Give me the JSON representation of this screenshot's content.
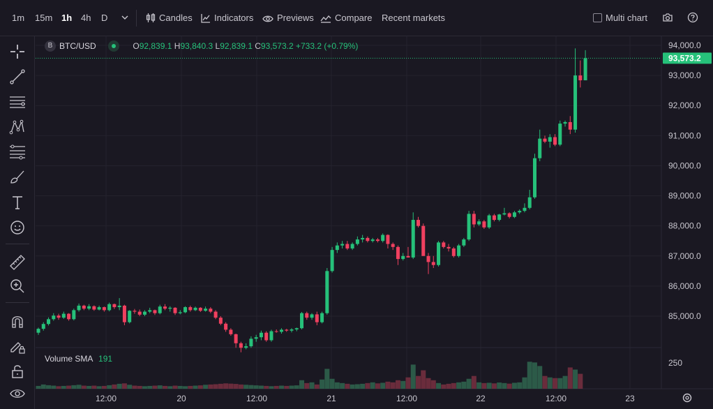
{
  "toolbar": {
    "intervals": [
      "1m",
      "15m",
      "1h",
      "4h",
      "D"
    ],
    "active_interval": "1h",
    "candles_label": "Candles",
    "indicators_label": "Indicators",
    "previews_label": "Previews",
    "compare_label": "Compare",
    "recent_markets_label": "Recent markets",
    "multi_chart_label": "Multi chart",
    "multi_chart_checked": false
  },
  "sidebar": {
    "tools": [
      "crosshair-icon",
      "trend-line-icon",
      "horizontal-lines-icon",
      "pattern-icon",
      "fib-icon",
      "brush-icon",
      "text-icon",
      "emoji-icon",
      "ruler-icon",
      "zoom-in-icon",
      "magnet-icon",
      "pencil-lock-icon",
      "lock-icon",
      "eye-icon"
    ]
  },
  "legend": {
    "symbol": "BTC/USD",
    "symbol_badge": "B",
    "o_label": "O",
    "o_value": "92,839.1",
    "h_label": "H",
    "h_value": "93,840.3",
    "l_label": "L",
    "l_value": "92,839.1",
    "c_label": "C",
    "c_value": "93,573.2",
    "change": "+733.2",
    "change_pct": "(+0.79%)"
  },
  "volume": {
    "label": "Volume SMA",
    "value": "191",
    "axis_label": "250"
  },
  "colors": {
    "up": "#26c17a",
    "down": "#f0405f",
    "vol_up": "#2c5a48",
    "vol_down": "#6a2c3c",
    "last_price_bg": "#26c17a",
    "background": "#1a1822"
  },
  "chart_data": {
    "type": "candlestick",
    "price_axis_ticks": [
      "94,000.0",
      "93,000.0",
      "92,000.0",
      "91,000.0",
      "90,000.0",
      "89,000.0",
      "88,000.0",
      "87,000.0",
      "86,000.0",
      "85,000.0"
    ],
    "price_axis_values": [
      94000,
      93000,
      92000,
      91000,
      90000,
      89000,
      88000,
      87000,
      86000,
      85000
    ],
    "time_axis_labels": [
      "12:00",
      "20",
      "12:00",
      "21",
      "12:00",
      "22",
      "12:00",
      "23"
    ],
    "last_price": "93,573.2",
    "last_price_value": 93573.2,
    "ohlc": [
      [
        84450,
        84620,
        84380,
        84580
      ],
      [
        84580,
        84800,
        84520,
        84740
      ],
      [
        84740,
        84960,
        84690,
        84900
      ],
      [
        84900,
        85100,
        84850,
        85020
      ],
      [
        85020,
        85080,
        84880,
        84950
      ],
      [
        84950,
        85150,
        84910,
        85080
      ],
      [
        85080,
        85100,
        84850,
        84900
      ],
      [
        84900,
        85250,
        84860,
        85200
      ],
      [
        85200,
        85420,
        85150,
        85350
      ],
      [
        85350,
        85380,
        85200,
        85250
      ],
      [
        85250,
        85400,
        85200,
        85330
      ],
      [
        85330,
        85360,
        85180,
        85220
      ],
      [
        85220,
        85350,
        85190,
        85300
      ],
      [
        85300,
        85320,
        85150,
        85200
      ],
      [
        85200,
        85450,
        85160,
        85400
      ],
      [
        85400,
        85420,
        85240,
        85300
      ],
      [
        85300,
        85600,
        85200,
        85350
      ],
      [
        85350,
        85380,
        84700,
        84800
      ],
      [
        84800,
        85200,
        84760,
        85180
      ],
      [
        85180,
        85240,
        85080,
        85150
      ],
      [
        85150,
        85220,
        85000,
        85050
      ],
      [
        85050,
        85200,
        85000,
        85150
      ],
      [
        85150,
        85280,
        85100,
        85200
      ],
      [
        85200,
        85220,
        85040,
        85100
      ],
      [
        85100,
        85380,
        85060,
        85320
      ],
      [
        85320,
        85400,
        85200,
        85250
      ],
      [
        85250,
        85330,
        85150,
        85280
      ],
      [
        85280,
        85300,
        85040,
        85100
      ],
      [
        85100,
        85200,
        85060,
        85130
      ],
      [
        85130,
        85330,
        85100,
        85300
      ],
      [
        85300,
        85350,
        85150,
        85200
      ],
      [
        85200,
        85320,
        85170,
        85280
      ],
      [
        85280,
        85300,
        85140,
        85180
      ],
      [
        85180,
        85320,
        85150,
        85250
      ],
      [
        85250,
        85300,
        85100,
        85150
      ],
      [
        85150,
        85200,
        84900,
        84950
      ],
      [
        84950,
        85000,
        84700,
        84750
      ],
      [
        84750,
        84800,
        84480,
        84550
      ],
      [
        84550,
        84600,
        84350,
        84400
      ],
      [
        84400,
        84420,
        83950,
        84100
      ],
      [
        84100,
        84150,
        83800,
        83950
      ],
      [
        83950,
        84100,
        83900,
        84000
      ],
      [
        84000,
        84330,
        83950,
        84250
      ],
      [
        84250,
        84380,
        84150,
        84300
      ],
      [
        84300,
        84520,
        84200,
        84450
      ],
      [
        84450,
        84500,
        84150,
        84200
      ],
      [
        84200,
        84550,
        84150,
        84500
      ],
      [
        84500,
        84560,
        84450,
        84480
      ],
      [
        84480,
        84600,
        84420,
        84550
      ],
      [
        84550,
        84580,
        84480,
        84520
      ],
      [
        84520,
        84600,
        84460,
        84560
      ],
      [
        84560,
        84620,
        84500,
        84600
      ],
      [
        84600,
        85140,
        84560,
        85100
      ],
      [
        85100,
        85150,
        84880,
        84950
      ],
      [
        84950,
        85100,
        84880,
        85060
      ],
      [
        85060,
        85150,
        84700,
        84800
      ],
      [
        84800,
        85150,
        84760,
        85100
      ],
      [
        85100,
        86600,
        85050,
        86500
      ],
      [
        86500,
        87300,
        86450,
        87200
      ],
      [
        87200,
        87450,
        87100,
        87350
      ],
      [
        87350,
        87500,
        87250,
        87400
      ],
      [
        87400,
        87500,
        87200,
        87250
      ],
      [
        87250,
        87450,
        87200,
        87400
      ],
      [
        87400,
        87650,
        87350,
        87550
      ],
      [
        87550,
        87700,
        87450,
        87600
      ],
      [
        87600,
        87650,
        87450,
        87500
      ],
      [
        87500,
        87600,
        87450,
        87550
      ],
      [
        87550,
        87600,
        87450,
        87500
      ],
      [
        87500,
        87750,
        87450,
        87700
      ],
      [
        87700,
        87720,
        87250,
        87400
      ],
      [
        87400,
        87450,
        87200,
        87300
      ],
      [
        87300,
        87350,
        86700,
        86900
      ],
      [
        86900,
        87100,
        86850,
        87000
      ],
      [
        87000,
        87300,
        86950,
        86950
      ],
      [
        86950,
        88450,
        86900,
        88200
      ],
      [
        88200,
        88300,
        87950,
        88000
      ],
      [
        88000,
        88080,
        87100,
        87000
      ],
      [
        87000,
        87100,
        86400,
        86800
      ],
      [
        86800,
        87000,
        86600,
        86700
      ],
      [
        86700,
        87500,
        86650,
        87450
      ],
      [
        87450,
        87500,
        87250,
        87300
      ],
      [
        87300,
        87400,
        87150,
        87250
      ],
      [
        87250,
        87300,
        86950,
        87000
      ],
      [
        87000,
        87400,
        86950,
        87350
      ],
      [
        87350,
        87600,
        87300,
        87550
      ],
      [
        87550,
        88500,
        87500,
        88400
      ],
      [
        88400,
        88500,
        87950,
        88050
      ],
      [
        88050,
        88220,
        88000,
        88150
      ],
      [
        88150,
        88200,
        87900,
        87950
      ],
      [
        87950,
        88400,
        87900,
        88350
      ],
      [
        88350,
        88400,
        88150,
        88200
      ],
      [
        88200,
        88400,
        88150,
        88380
      ],
      [
        88380,
        88600,
        88350,
        88420
      ],
      [
        88420,
        88450,
        88250,
        88300
      ],
      [
        88300,
        88500,
        88260,
        88450
      ],
      [
        88450,
        88550,
        88400,
        88500
      ],
      [
        88500,
        88750,
        88450,
        88600
      ],
      [
        88600,
        89200,
        88550,
        88950
      ],
      [
        88950,
        90400,
        88900,
        90250
      ],
      [
        90250,
        91200,
        90150,
        90900
      ],
      [
        90900,
        91000,
        90750,
        90800
      ],
      [
        90800,
        91050,
        90600,
        90950
      ],
      [
        90950,
        91050,
        90650,
        90700
      ],
      [
        90700,
        91500,
        90650,
        91400
      ],
      [
        91400,
        91500,
        91300,
        91450
      ],
      [
        91450,
        91650,
        91050,
        91200
      ],
      [
        91200,
        93900,
        91100,
        93000
      ],
      [
        93000,
        93500,
        92600,
        92839.1
      ],
      [
        92839.1,
        93840.3,
        92839.1,
        93573.2
      ]
    ],
    "volume": [
      20,
      30,
      25,
      22,
      18,
      20,
      22,
      25,
      28,
      22,
      20,
      22,
      18,
      20,
      25,
      30,
      35,
      38,
      28,
      22,
      20,
      18,
      20,
      22,
      24,
      20,
      18,
      22,
      20,
      18,
      20,
      22,
      24,
      28,
      30,
      32,
      35,
      38,
      36,
      34,
      30,
      28,
      26,
      24,
      22,
      20,
      18,
      20,
      22,
      20,
      22,
      24,
      60,
      40,
      45,
      30,
      65,
      140,
      70,
      45,
      40,
      35,
      30,
      32,
      35,
      40,
      45,
      38,
      42,
      50,
      45,
      60,
      55,
      80,
      170,
      90,
      130,
      75,
      60,
      40,
      30,
      35,
      40,
      45,
      50,
      70,
      90,
      45,
      40,
      42,
      38,
      44,
      40,
      36,
      42,
      45,
      80,
      190,
      185,
      160,
      90,
      80,
      75,
      75,
      90,
      150,
      135,
      105
    ],
    "vol_ylim": [
      0,
      270
    ]
  }
}
